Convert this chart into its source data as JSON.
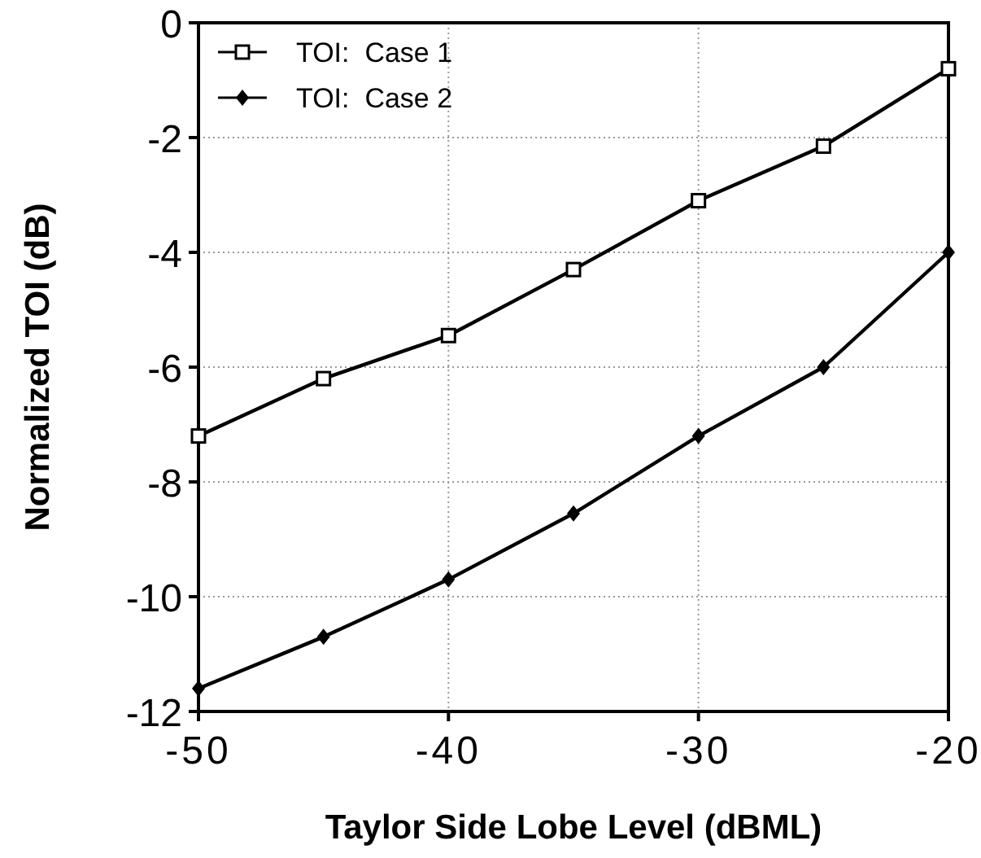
{
  "chart_data": {
    "type": "line",
    "xlabel": "Taylor Side Lobe Level (dBML)",
    "ylabel": "Normalized TOI (dB)",
    "x": [
      -50,
      -45,
      -40,
      -35,
      -30,
      -25,
      -20
    ],
    "series": [
      {
        "name": "TOI:  Case 1",
        "color": "#000000",
        "marker": "square",
        "values": [
          -7.2,
          -6.2,
          -5.45,
          -4.3,
          -3.1,
          -2.15,
          -0.8
        ]
      },
      {
        "name": "TOI:  Case 2",
        "color": "#000000",
        "marker": "diamond",
        "values": [
          -11.6,
          -10.7,
          -9.7,
          -8.55,
          -7.2,
          -6.0,
          -4.0
        ]
      }
    ],
    "xlim": [
      -50,
      -20
    ],
    "xticks": [
      -50,
      -40,
      -30,
      -20
    ],
    "ylim": [
      -12,
      0
    ],
    "yticks": [
      -12,
      -10,
      -8,
      -6,
      -4,
      -2,
      0
    ],
    "grid": true,
    "legend": "top left",
    "line_style": "solid"
  }
}
